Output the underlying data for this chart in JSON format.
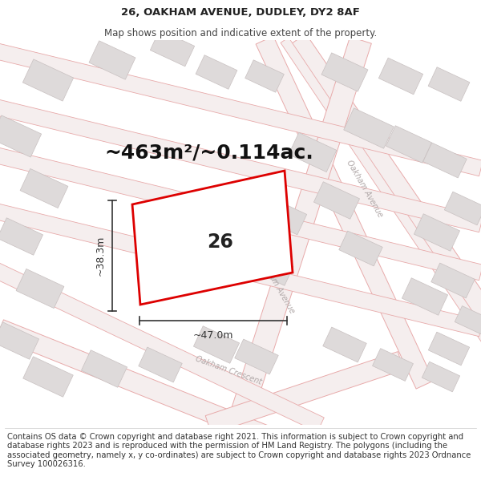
{
  "title_line1": "26, OAKHAM AVENUE, DUDLEY, DY2 8AF",
  "title_line2": "Map shows position and indicative extent of the property.",
  "area_label": "~463m²/~0.114ac.",
  "plot_number": "26",
  "dim_width": "~47.0m",
  "dim_height": "~38.3m",
  "footer_text": "Contains OS data © Crown copyright and database right 2021. This information is subject to Crown copyright and database rights 2023 and is reproduced with the permission of HM Land Registry. The polygons (including the associated geometry, namely x, y co-ordinates) are subject to Crown copyright and database rights 2023 Ordnance Survey 100026316.",
  "map_bg": "#f7f3f3",
  "road_outline_color": "#e8aaaa",
  "road_fill_color": "#f5eeee",
  "building_fill_color": "#dedada",
  "building_edge_color": "#c8c0c0",
  "plot_edge_color": "#dd0000",
  "plot_fill_color": "#ffffff",
  "street_label_color": "#b0a8a8",
  "dim_color": "#333333",
  "title_fontsize": 9.5,
  "subtitle_fontsize": 8.5,
  "area_fontsize": 18,
  "plot_label_fontsize": 17,
  "dim_fontsize": 9,
  "street_fontsize": 7,
  "footer_fontsize": 7.2,
  "title_color": "#222222",
  "footer_color": "#333333"
}
